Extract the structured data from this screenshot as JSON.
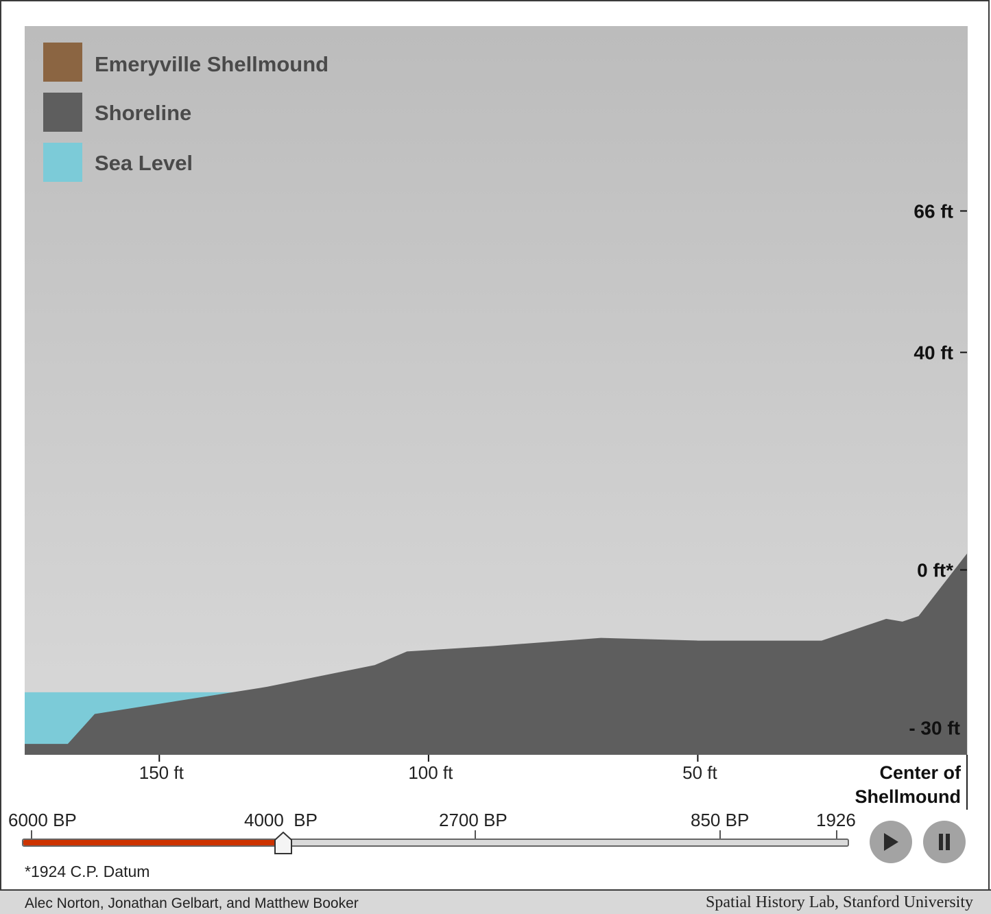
{
  "legend": [
    {
      "label": "Emeryville Shellmound",
      "color": "#8b6542"
    },
    {
      "label": "Shoreline",
      "color": "#5e5e5e"
    },
    {
      "label": "Sea Level",
      "color": "#7ccbd8"
    }
  ],
  "colors": {
    "background_top": "#bcbcbc",
    "background_bottom": "#d9d9d9",
    "shoreline": "#5e5e5e",
    "sea": "#7ccbd8",
    "timeline_fill": "#cc3300",
    "button": "#a3a3a3"
  },
  "chart_data": {
    "type": "area",
    "y_ticks": [
      {
        "value": 66,
        "label": "66 ft"
      },
      {
        "value": 40,
        "label": "40 ft"
      },
      {
        "value": 0,
        "label": "0 ft*"
      },
      {
        "value": -30,
        "label": "- 30 ft"
      }
    ],
    "x_ticks": [
      {
        "value": 150,
        "label": "150 ft"
      },
      {
        "value": 100,
        "label": "100 ft"
      },
      {
        "value": 50,
        "label": "50 ft"
      }
    ],
    "x_end_label": [
      "Center of",
      "Shellmound"
    ],
    "xlim": [
      175,
      0
    ],
    "ylim": [
      -34,
      100
    ],
    "sea_level": {
      "value": -22.5,
      "x_from": 175,
      "x_to": 130
    },
    "shoreline": {
      "x": [
        175,
        167,
        162,
        130,
        110,
        104,
        88,
        68,
        50,
        27,
        15,
        12,
        9,
        0
      ],
      "y": [
        -32,
        -32,
        -26.5,
        -21.5,
        -17.5,
        -15,
        -14,
        -12.5,
        -13,
        -13,
        -9,
        -9.5,
        -8.5,
        3
      ]
    }
  },
  "timeline": {
    "labels": [
      "6000 BP",
      "4000  BP",
      "2700 BP",
      "850 BP",
      "1926"
    ],
    "current": "4000  BP",
    "progress": 0.316
  },
  "controls": {
    "play_icon": "play-icon",
    "pause_icon": "pause-icon"
  },
  "note": "*1924 C.P. Datum",
  "footer": {
    "authors": "Alec Norton, Jonathan Gelbart, and Matthew Booker",
    "institution": "Spatial History Lab, Stanford University"
  }
}
